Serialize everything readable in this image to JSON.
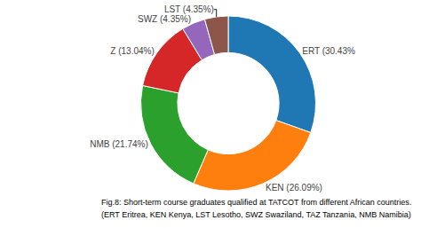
{
  "chart_data": {
    "type": "pie",
    "categories": [
      "ERT (30.43%",
      "KEN (26.09%)",
      "NMB (21.74%)",
      "Z (13.04%)",
      "SWZ (4.35%)",
      "LST (4.35%)"
    ],
    "values": [
      30.43,
      26.09,
      21.74,
      13.04,
      4.35,
      4.35
    ],
    "annotations": [
      "Fig.8: Short-term course graduates qualified at TATCOT from different African countries.",
      "(ERT Eritrea, KEN Kenya, LST Lesotho, SWZ Swaziland, TAZ Tanzania, NMB Namibia)"
    ]
  }
}
